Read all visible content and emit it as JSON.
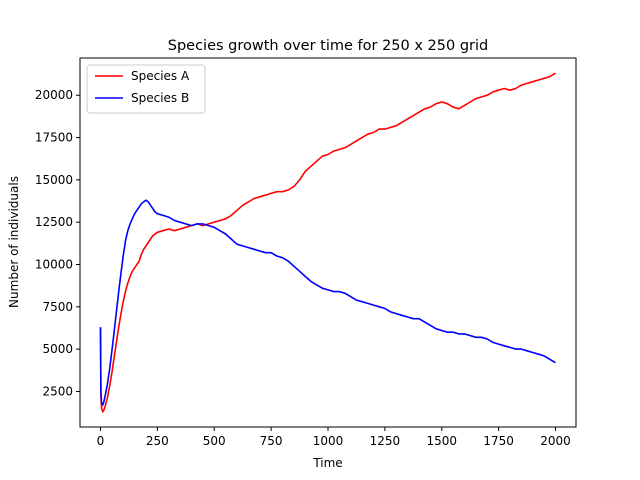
{
  "chart_data": {
    "type": "line",
    "title": "Species growth over time for 250 x 250 grid",
    "xlabel": "Time",
    "ylabel": "Number of individuals",
    "xlim": [
      -90,
      2090
    ],
    "ylim": [
      400,
      22200
    ],
    "xticks": [
      0,
      250,
      500,
      750,
      1000,
      1250,
      1500,
      1750,
      2000
    ],
    "yticks": [
      2500,
      5000,
      7500,
      10000,
      12500,
      15000,
      17500,
      20000
    ],
    "grid": false,
    "legend_position": "upper-left",
    "series": [
      {
        "name": "Species A",
        "color": "#ff0000",
        "x": [
          0,
          2,
          5,
          10,
          15,
          20,
          30,
          40,
          50,
          60,
          70,
          80,
          90,
          100,
          110,
          120,
          130,
          140,
          150,
          160,
          170,
          180,
          190,
          200,
          210,
          220,
          230,
          240,
          250,
          275,
          300,
          325,
          350,
          375,
          400,
          425,
          450,
          475,
          500,
          525,
          550,
          575,
          600,
          625,
          650,
          675,
          700,
          725,
          750,
          775,
          800,
          825,
          850,
          875,
          900,
          925,
          950,
          975,
          1000,
          1025,
          1050,
          1075,
          1100,
          1125,
          1150,
          1175,
          1200,
          1225,
          1250,
          1275,
          1300,
          1325,
          1350,
          1375,
          1400,
          1425,
          1450,
          1475,
          1500,
          1525,
          1550,
          1575,
          1600,
          1625,
          1650,
          1675,
          1700,
          1725,
          1750,
          1775,
          1800,
          1825,
          1850,
          1875,
          1900,
          1925,
          1950,
          1975,
          2000
        ],
        "values": [
          6200,
          2200,
          1500,
          1300,
          1400,
          1600,
          2100,
          2800,
          3600,
          4500,
          5400,
          6300,
          7100,
          7800,
          8400,
          8900,
          9300,
          9600,
          9800,
          10000,
          10200,
          10600,
          10900,
          11100,
          11300,
          11500,
          11700,
          11800,
          11900,
          12000,
          12100,
          12000,
          12100,
          12200,
          12300,
          12400,
          12300,
          12400,
          12500,
          12600,
          12700,
          12900,
          13200,
          13500,
          13700,
          13900,
          14000,
          14100,
          14200,
          14300,
          14300,
          14400,
          14600,
          15000,
          15500,
          15800,
          16100,
          16400,
          16500,
          16700,
          16800,
          16900,
          17100,
          17300,
          17500,
          17700,
          17800,
          18000,
          18000,
          18100,
          18200,
          18400,
          18600,
          18800,
          19000,
          19200,
          19300,
          19500,
          19600,
          19500,
          19300,
          19200,
          19400,
          19600,
          19800,
          19900,
          20000,
          20200,
          20300,
          20400,
          20300,
          20400,
          20600,
          20700,
          20800,
          20900,
          21000,
          21100,
          21300
        ]
      },
      {
        "name": "Species B",
        "color": "#0000ff",
        "x": [
          0,
          2,
          5,
          10,
          15,
          20,
          30,
          40,
          50,
          60,
          70,
          80,
          90,
          100,
          110,
          120,
          130,
          140,
          150,
          160,
          170,
          180,
          190,
          200,
          210,
          220,
          230,
          240,
          250,
          275,
          300,
          325,
          350,
          375,
          400,
          425,
          450,
          475,
          500,
          525,
          550,
          575,
          600,
          625,
          650,
          675,
          700,
          725,
          750,
          775,
          800,
          825,
          850,
          875,
          900,
          925,
          950,
          975,
          1000,
          1025,
          1050,
          1075,
          1100,
          1125,
          1150,
          1175,
          1200,
          1225,
          1250,
          1275,
          1300,
          1325,
          1350,
          1375,
          1400,
          1425,
          1450,
          1475,
          1500,
          1525,
          1550,
          1575,
          1600,
          1625,
          1650,
          1675,
          1700,
          1725,
          1750,
          1775,
          1800,
          1825,
          1850,
          1875,
          1900,
          1925,
          1950,
          1975,
          2000
        ],
        "values": [
          6300,
          2500,
          1800,
          1700,
          1900,
          2200,
          2900,
          3800,
          4900,
          6000,
          7200,
          8400,
          9500,
          10500,
          11400,
          12000,
          12400,
          12700,
          13000,
          13200,
          13400,
          13600,
          13700,
          13800,
          13700,
          13500,
          13300,
          13100,
          13000,
          12900,
          12800,
          12600,
          12500,
          12400,
          12300,
          12400,
          12400,
          12300,
          12200,
          12000,
          11800,
          11500,
          11200,
          11100,
          11000,
          10900,
          10800,
          10700,
          10700,
          10500,
          10400,
          10200,
          9900,
          9600,
          9300,
          9000,
          8800,
          8600,
          8500,
          8400,
          8400,
          8300,
          8100,
          7900,
          7800,
          7700,
          7600,
          7500,
          7400,
          7200,
          7100,
          7000,
          6900,
          6800,
          6800,
          6600,
          6400,
          6200,
          6100,
          6000,
          6000,
          5900,
          5900,
          5800,
          5700,
          5700,
          5600,
          5400,
          5300,
          5200,
          5100,
          5000,
          5000,
          4900,
          4800,
          4700,
          4600,
          4400,
          4200
        ]
      }
    ]
  }
}
